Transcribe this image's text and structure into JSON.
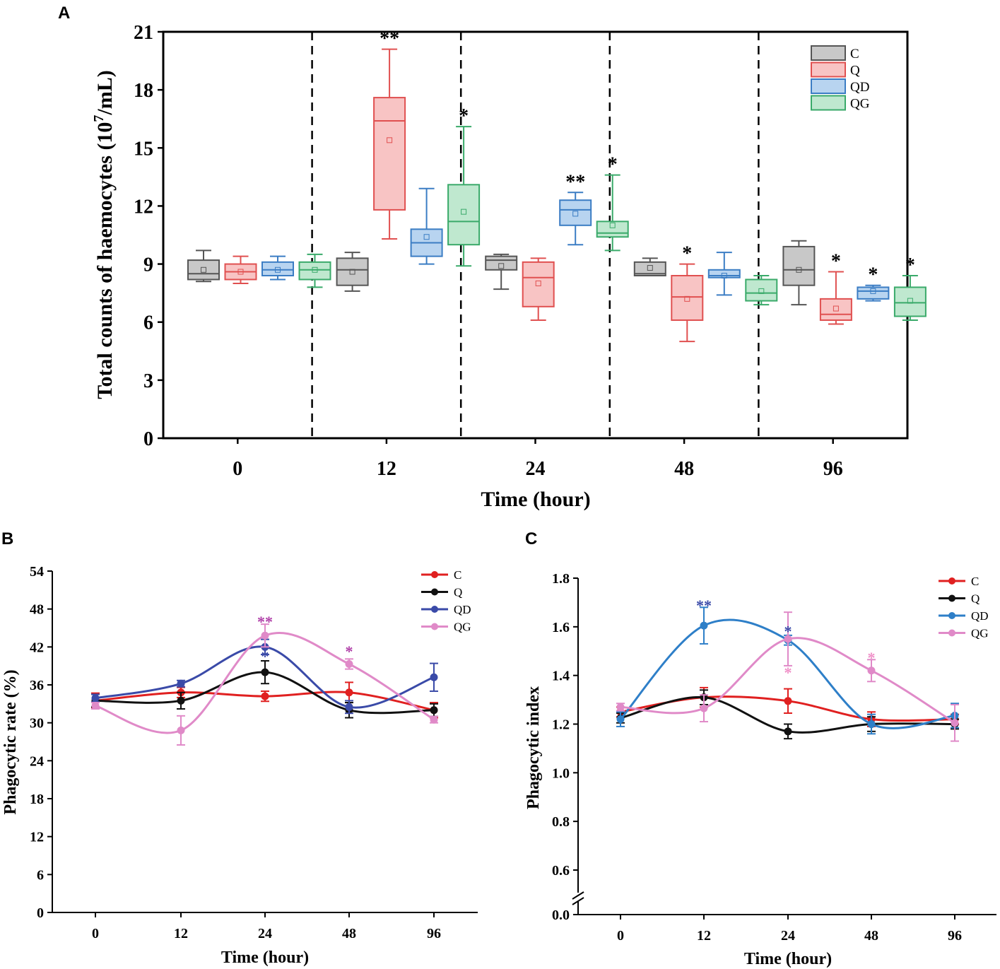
{
  "colors": {
    "C": "#555555",
    "Q": "#e05050",
    "QD": "#3b7dc4",
    "QG": "#3aaa6a",
    "C_fill": "#c8c8c8",
    "Q_fill": "#f8c4c4",
    "QD_fill": "#b8d4f0",
    "QG_fill": "#bfe8cf",
    "lineC": "#e02020",
    "lineQ": "#111111",
    "lineQD_B": "#3a4aa8",
    "lineQD_C": "#2e7fc8",
    "lineQG": "#e08ac8",
    "starQD_B": "#3a4aa8",
    "starQG_B": "#b040a8",
    "starQD_C": "#3a4aa8",
    "starQG_C": "#f090c8"
  },
  "chart_data": [
    {
      "type": "box",
      "panel_label": "A",
      "xlabel": "Time (hour)",
      "ylabel_main": "Total counts of haemocytes (10",
      "ylabel_sup": "7",
      "ylabel_end": "/mL)",
      "ylim": [
        0,
        21
      ],
      "yticks": [
        "0",
        "3",
        "6",
        "9",
        "12",
        "15",
        "18",
        "21"
      ],
      "categories": [
        "0",
        "12",
        "24",
        "48",
        "96"
      ],
      "legend": [
        "C",
        "Q",
        "QD",
        "QG"
      ],
      "groups": [
        {
          "time": "0",
          "boxes": [
            {
              "s": "C",
              "wl": 8.1,
              "q1": 8.2,
              "med": 8.5,
              "q3": 9.2,
              "wh": 9.7,
              "mean": 8.7,
              "star": ""
            },
            {
              "s": "Q",
              "wl": 8.0,
              "q1": 8.2,
              "med": 8.6,
              "q3": 9.0,
              "wh": 9.4,
              "mean": 8.6,
              "star": ""
            },
            {
              "s": "QD",
              "wl": 8.2,
              "q1": 8.4,
              "med": 8.7,
              "q3": 9.1,
              "wh": 9.4,
              "mean": 8.7,
              "star": ""
            },
            {
              "s": "QG",
              "wl": 7.8,
              "q1": 8.2,
              "med": 8.7,
              "q3": 9.1,
              "wh": 9.5,
              "mean": 8.7,
              "star": ""
            }
          ]
        },
        {
          "time": "12",
          "boxes": [
            {
              "s": "C",
              "wl": 7.6,
              "q1": 7.9,
              "med": 8.7,
              "q3": 9.3,
              "wh": 9.6,
              "mean": 8.6,
              "star": ""
            },
            {
              "s": "Q",
              "wl": 10.3,
              "q1": 11.8,
              "med": 16.4,
              "q3": 17.6,
              "wh": 20.1,
              "mean": 15.4,
              "star": "**"
            },
            {
              "s": "QD",
              "wl": 9.0,
              "q1": 9.4,
              "med": 10.1,
              "q3": 10.8,
              "wh": 12.9,
              "mean": 10.4,
              "star": ""
            },
            {
              "s": "QG",
              "wl": 8.9,
              "q1": 10.0,
              "med": 11.2,
              "q3": 13.1,
              "wh": 16.1,
              "mean": 11.7,
              "star": "*"
            }
          ]
        },
        {
          "time": "24",
          "boxes": [
            {
              "s": "C",
              "wl": 7.7,
              "q1": 8.7,
              "med": 9.2,
              "q3": 9.4,
              "wh": 9.5,
              "mean": 8.9,
              "star": ""
            },
            {
              "s": "Q",
              "wl": 6.1,
              "q1": 6.8,
              "med": 8.3,
              "q3": 9.1,
              "wh": 9.3,
              "mean": 8.0,
              "star": ""
            },
            {
              "s": "QD",
              "wl": 10.0,
              "q1": 11.0,
              "med": 11.8,
              "q3": 12.3,
              "wh": 12.7,
              "mean": 11.6,
              "star": "**"
            },
            {
              "s": "QG",
              "wl": 9.7,
              "q1": 10.4,
              "med": 10.6,
              "q3": 11.2,
              "wh": 13.6,
              "mean": 11.0,
              "star": "*"
            }
          ]
        },
        {
          "time": "48",
          "boxes": [
            {
              "s": "C",
              "wl": 8.4,
              "q1": 8.4,
              "med": 8.5,
              "q3": 9.1,
              "wh": 9.3,
              "mean": 8.8,
              "star": ""
            },
            {
              "s": "Q",
              "wl": 5.0,
              "q1": 6.1,
              "med": 7.3,
              "q3": 8.4,
              "wh": 9.0,
              "mean": 7.2,
              "star": "*"
            },
            {
              "s": "QD",
              "wl": 7.4,
              "q1": 8.3,
              "med": 8.4,
              "q3": 8.7,
              "wh": 9.6,
              "mean": 8.4,
              "star": ""
            },
            {
              "s": "QG",
              "wl": 6.9,
              "q1": 7.1,
              "med": 7.5,
              "q3": 8.2,
              "wh": 8.4,
              "mean": 7.6,
              "star": ""
            }
          ]
        },
        {
          "time": "96",
          "boxes": [
            {
              "s": "C",
              "wl": 6.9,
              "q1": 7.9,
              "med": 8.7,
              "q3": 9.9,
              "wh": 10.2,
              "mean": 8.7,
              "star": ""
            },
            {
              "s": "Q",
              "wl": 5.9,
              "q1": 6.1,
              "med": 6.4,
              "q3": 7.2,
              "wh": 8.6,
              "mean": 6.7,
              "star": "*"
            },
            {
              "s": "QD",
              "wl": 7.1,
              "q1": 7.2,
              "med": 7.6,
              "q3": 7.8,
              "wh": 7.9,
              "mean": 7.6,
              "star": "*"
            },
            {
              "s": "QG",
              "wl": 6.1,
              "q1": 6.3,
              "med": 7.0,
              "q3": 7.8,
              "wh": 8.4,
              "mean": 7.1,
              "star": "*"
            }
          ]
        }
      ]
    },
    {
      "type": "line",
      "panel_label": "B",
      "xlabel": "Time (hour)",
      "ylabel": "Phagocytic rate (%)",
      "ylim": [
        0,
        54
      ],
      "yticks": [
        "0",
        "6",
        "12",
        "18",
        "24",
        "30",
        "36",
        "42",
        "48",
        "54"
      ],
      "categories": [
        "0",
        "12",
        "24",
        "48",
        "96"
      ],
      "series": [
        {
          "name": "C",
          "values": [
            33.5,
            34.8,
            34.2,
            34.8,
            32.0
          ],
          "err": [
            1.2,
            0.8,
            0.8,
            1.6,
            1.2
          ]
        },
        {
          "name": "Q",
          "values": [
            33.5,
            33.5,
            38.0,
            32.0,
            32.0
          ],
          "err": [
            1.0,
            1.3,
            1.8,
            1.2,
            1.0
          ]
        },
        {
          "name": "QD",
          "values": [
            33.9,
            36.2,
            42.0,
            32.5,
            37.2
          ],
          "err": [
            0.6,
            0.5,
            1.2,
            1.0,
            2.2
          ]
        },
        {
          "name": "QG",
          "values": [
            32.7,
            28.8,
            43.8,
            39.3,
            30.5
          ],
          "err": [
            0.5,
            2.3,
            1.8,
            0.8,
            0.5
          ]
        }
      ],
      "stars": [
        {
          "x": "24",
          "text": "**",
          "y": 46.3,
          "series": "QG"
        },
        {
          "x": "24",
          "text": "*",
          "y": 40.8,
          "series": "QD"
        },
        {
          "x": "48",
          "text": "*",
          "y": 41.6,
          "series": "QG"
        }
      ]
    },
    {
      "type": "line",
      "panel_label": "C",
      "xlabel": "Time (hour)",
      "ylabel": "Phagocytic index",
      "ylim": [
        0.0,
        1.8
      ],
      "yticks": [
        "0.0",
        "0.6",
        "0.8",
        "1.0",
        "1.2",
        "1.4",
        "1.6",
        "1.8"
      ],
      "categories": [
        "0",
        "12",
        "24",
        "48",
        "96"
      ],
      "series": [
        {
          "name": "C",
          "values": [
            1.25,
            1.31,
            1.295,
            1.22,
            1.22
          ],
          "err": [
            0.02,
            0.04,
            0.05,
            0.03,
            0.02
          ]
        },
        {
          "name": "Q",
          "values": [
            1.225,
            1.31,
            1.17,
            1.2,
            1.2
          ],
          "err": [
            0.02,
            0.03,
            0.03,
            0.03,
            0.02
          ]
        },
        {
          "name": "QD",
          "values": [
            1.22,
            1.605,
            1.545,
            1.2,
            1.235
          ],
          "err": [
            0.03,
            0.075,
            0.02,
            0.04,
            0.05
          ]
        },
        {
          "name": "QG",
          "values": [
            1.27,
            1.265,
            1.55,
            1.42,
            1.205
          ],
          "err": [
            0.015,
            0.055,
            0.11,
            0.045,
            0.075
          ]
        }
      ],
      "stars": [
        {
          "x": "12",
          "text": "**",
          "y": 1.695,
          "series": "QD"
        },
        {
          "x": "24",
          "text": "*",
          "y": 1.59,
          "series": "QD"
        },
        {
          "x": "24",
          "text": "*",
          "y": 1.42,
          "series": "QG"
        },
        {
          "x": "48",
          "text": "*",
          "y": 1.48,
          "series": "QG"
        }
      ]
    }
  ]
}
